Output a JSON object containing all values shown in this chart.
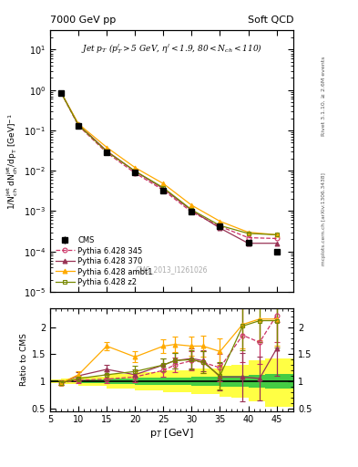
{
  "title_left": "7000 GeV pp",
  "title_right": "Soft QCD",
  "watermark": "CMS_2013_I1261026",
  "rivet_text": "Rivet 3.1.10, ≥ 2.6M events",
  "mcplots_text": "mcplots.cern.ch [arXiv:1306.3438]",
  "ylabel_main": "1/N$_{ch}^{jet}$ dN$_{ch}^{jet}$/dp$_T$ [GeV]$^{-1}$",
  "ylabel_ratio": "Ratio to CMS",
  "xlabel": "p$_T$ [GeV]",
  "xlim": [
    5,
    48
  ],
  "ylim_main": [
    1e-05,
    30
  ],
  "ylim_ratio": [
    0.45,
    2.35
  ],
  "cms_x": [
    7,
    10,
    15,
    20,
    25,
    30,
    35,
    40,
    45
  ],
  "cms_y": [
    0.85,
    0.13,
    0.028,
    0.009,
    0.0032,
    0.00095,
    0.00042,
    0.00017,
    0.0001
  ],
  "cms_yerr": [
    0.06,
    0.009,
    0.0025,
    0.0006,
    0.00025,
    7e-05,
    3.5e-05,
    1.5e-05,
    1e-05
  ],
  "p345_x": [
    7,
    10,
    15,
    20,
    25,
    30,
    35,
    40,
    45
  ],
  "p345_y": [
    0.83,
    0.13,
    0.028,
    0.0088,
    0.0033,
    0.00095,
    0.00042,
    0.00022,
    0.00021
  ],
  "p370_x": [
    7,
    10,
    15,
    20,
    25,
    30,
    35,
    40,
    45
  ],
  "p370_y": [
    0.83,
    0.14,
    0.031,
    0.0097,
    0.0036,
    0.00104,
    0.00038,
    0.00016,
    0.00016
  ],
  "pambt1_x": [
    7,
    10,
    15,
    20,
    25,
    30,
    35,
    40,
    45
  ],
  "pambt1_y": [
    0.83,
    0.145,
    0.038,
    0.012,
    0.0048,
    0.0014,
    0.00056,
    0.0003,
    0.00026
  ],
  "pz2_x": [
    7,
    10,
    15,
    20,
    25,
    30,
    35,
    40,
    45
  ],
  "pz2_y": [
    0.83,
    0.135,
    0.03,
    0.0098,
    0.0038,
    0.00108,
    0.00044,
    0.00028,
    0.00026
  ],
  "ratio_345_x": [
    7,
    10,
    15,
    20,
    25,
    27,
    30,
    32,
    35,
    39,
    42,
    45
  ],
  "ratio_345_y": [
    0.97,
    1.02,
    1.04,
    1.08,
    1.2,
    1.3,
    1.38,
    1.35,
    1.25,
    1.85,
    1.72,
    2.22
  ],
  "ratio_345_ye": [
    0.04,
    0.05,
    0.07,
    0.1,
    0.12,
    0.13,
    0.18,
    0.2,
    0.25,
    0.5,
    0.4,
    0.5
  ],
  "ratio_370_x": [
    7,
    10,
    15,
    20,
    25,
    27,
    30,
    32,
    35,
    39,
    42,
    45
  ],
  "ratio_370_y": [
    0.97,
    1.1,
    1.22,
    1.12,
    1.3,
    1.38,
    1.42,
    1.38,
    1.08,
    1.08,
    1.05,
    1.6
  ],
  "ratio_370_ye": [
    0.04,
    0.06,
    0.08,
    0.1,
    0.12,
    0.14,
    0.18,
    0.2,
    0.25,
    0.45,
    0.4,
    0.5
  ],
  "ratio_ambt1_x": [
    7,
    10,
    15,
    20,
    25,
    27,
    30,
    32,
    35,
    39,
    42,
    45
  ],
  "ratio_ambt1_y": [
    0.97,
    1.12,
    1.65,
    1.45,
    1.65,
    1.68,
    1.65,
    1.65,
    1.55,
    2.05,
    2.15,
    2.15
  ],
  "ratio_ambt1_ye": [
    0.04,
    0.06,
    0.08,
    0.1,
    0.12,
    0.14,
    0.18,
    0.2,
    0.25,
    0.45,
    0.4,
    0.5
  ],
  "ratio_z2_x": [
    7,
    10,
    15,
    20,
    25,
    27,
    30,
    32,
    35,
    39,
    42,
    45
  ],
  "ratio_z2_y": [
    0.97,
    1.05,
    1.12,
    1.18,
    1.3,
    1.38,
    1.4,
    1.35,
    1.1,
    2.02,
    2.12,
    2.12
  ],
  "ratio_z2_ye": [
    0.04,
    0.05,
    0.07,
    0.1,
    0.12,
    0.14,
    0.18,
    0.2,
    0.25,
    0.45,
    0.4,
    0.5
  ],
  "band_yellow_x": [
    5,
    7,
    10,
    15,
    20,
    25,
    30,
    35,
    37,
    40,
    43,
    48
  ],
  "band_yellow_lo": [
    0.96,
    0.95,
    0.91,
    0.87,
    0.83,
    0.8,
    0.76,
    0.72,
    0.7,
    0.62,
    0.52,
    0.46
  ],
  "band_yellow_hi": [
    1.04,
    1.05,
    1.09,
    1.13,
    1.17,
    1.2,
    1.24,
    1.28,
    1.3,
    1.38,
    1.42,
    1.46
  ],
  "band_green_x": [
    5,
    7,
    10,
    15,
    20,
    25,
    30,
    35,
    37,
    40,
    43,
    48
  ],
  "band_green_lo": [
    0.985,
    0.978,
    0.96,
    0.945,
    0.935,
    0.925,
    0.912,
    0.9,
    0.895,
    0.875,
    0.86,
    0.85
  ],
  "band_green_hi": [
    1.015,
    1.022,
    1.04,
    1.055,
    1.065,
    1.075,
    1.088,
    1.1,
    1.105,
    1.125,
    1.14,
    1.15
  ],
  "color_345": "#cc3366",
  "color_370": "#993355",
  "color_ambt1": "#ffaa00",
  "color_z2": "#778800",
  "color_cms": "#000000",
  "color_yellow": "#ffff44",
  "color_green": "#44cc44"
}
